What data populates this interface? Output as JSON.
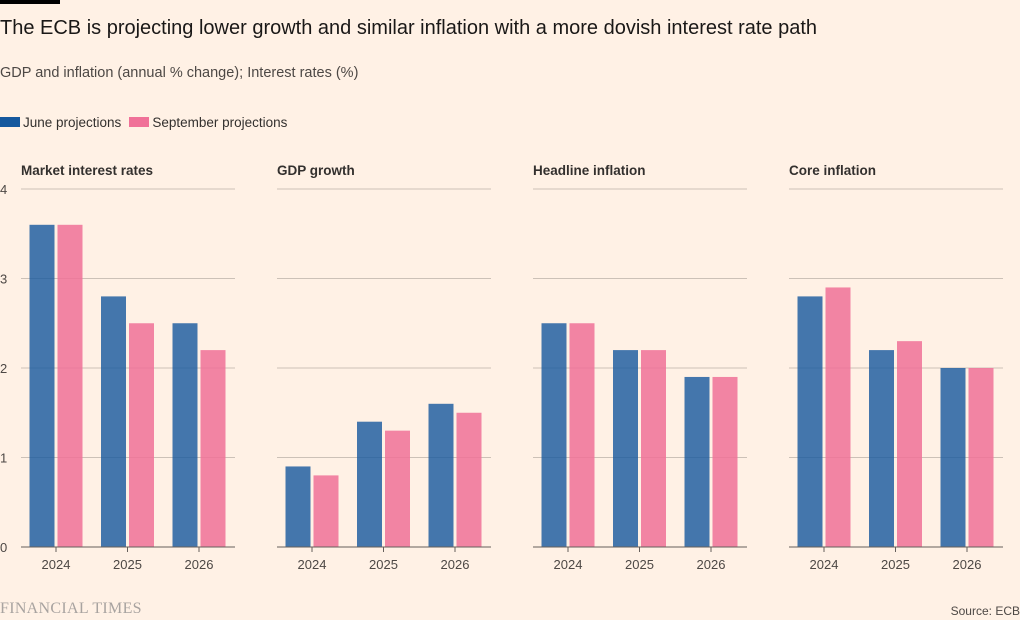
{
  "title": "The ECB is projecting lower growth and similar inflation with a more dovish interest rate path",
  "subtitle": "GDP and inflation (annual % change); Interest rates (%)",
  "legend": [
    {
      "label": "June projections",
      "color": "#15589e"
    },
    {
      "label": "September projections",
      "color": "#f07198"
    }
  ],
  "logo": "FINANCIAL TIMES",
  "source": "Source: ECB",
  "chart_data": [
    {
      "type": "bar",
      "title": "Market interest rates",
      "categories": [
        "2024",
        "2025",
        "2026"
      ],
      "series": [
        {
          "name": "June projections",
          "values": [
            3.6,
            2.8,
            2.5
          ]
        },
        {
          "name": "September projections",
          "values": [
            3.6,
            2.5,
            2.2
          ]
        }
      ],
      "ylim": [
        0,
        4
      ],
      "yticks": [
        "0",
        "1",
        "2",
        "3",
        "4"
      ],
      "grid": true
    },
    {
      "type": "bar",
      "title": "GDP growth",
      "categories": [
        "2024",
        "2025",
        "2026"
      ],
      "series": [
        {
          "name": "June projections",
          "values": [
            0.9,
            1.4,
            1.6
          ]
        },
        {
          "name": "September projections",
          "values": [
            0.8,
            1.3,
            1.5
          ]
        }
      ],
      "ylim": [
        0,
        4
      ],
      "grid": true
    },
    {
      "type": "bar",
      "title": "Headline inflation",
      "categories": [
        "2024",
        "2025",
        "2026"
      ],
      "series": [
        {
          "name": "June projections",
          "values": [
            2.5,
            2.2,
            1.9
          ]
        },
        {
          "name": "September projections",
          "values": [
            2.5,
            2.2,
            1.9
          ]
        }
      ],
      "ylim": [
        0,
        4
      ],
      "grid": true
    },
    {
      "type": "bar",
      "title": "Core inflation",
      "categories": [
        "2024",
        "2025",
        "2026"
      ],
      "series": [
        {
          "name": "June projections",
          "values": [
            2.8,
            2.2,
            2.0
          ]
        },
        {
          "name": "September projections",
          "values": [
            2.9,
            2.3,
            2.0
          ]
        }
      ],
      "ylim": [
        0,
        4
      ],
      "grid": true
    }
  ]
}
